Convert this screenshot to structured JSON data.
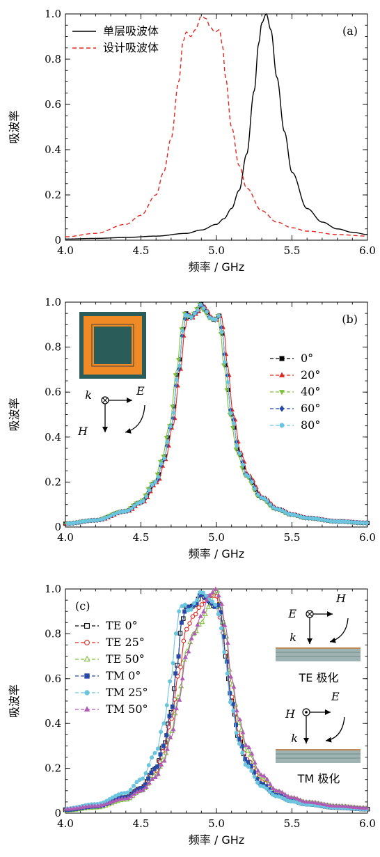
{
  "chart_data": [
    {
      "type": "line",
      "panel_label": "(a)",
      "xlabel": "频率 / GHz",
      "ylabel": "吸波率",
      "xlim": [
        4.0,
        6.0
      ],
      "ylim": [
        0,
        1.0
      ],
      "x_ticks": [
        "4.0",
        "4.5",
        "5.0",
        "5.5",
        "6.0"
      ],
      "y_ticks": [
        "0",
        "0.2",
        "0.4",
        "0.6",
        "0.8",
        "1.0"
      ],
      "legend_position": "top-left",
      "series": [
        {
          "name": "单层吸波体",
          "style": "solid",
          "color": "#000000",
          "x": [
            4.0,
            4.2,
            4.4,
            4.6,
            4.8,
            4.9,
            5.0,
            5.05,
            5.1,
            5.15,
            5.2,
            5.25,
            5.28,
            5.3,
            5.33,
            5.36,
            5.4,
            5.45,
            5.5,
            5.6,
            5.7,
            5.8,
            5.9,
            6.0
          ],
          "y": [
            0.005,
            0.008,
            0.012,
            0.018,
            0.03,
            0.045,
            0.07,
            0.095,
            0.14,
            0.22,
            0.38,
            0.66,
            0.87,
            0.96,
            1.0,
            0.93,
            0.72,
            0.48,
            0.3,
            0.14,
            0.08,
            0.05,
            0.035,
            0.025
          ]
        },
        {
          "name": "设计吸波体",
          "style": "dashed",
          "color": "#e3261f",
          "x": [
            4.0,
            4.2,
            4.4,
            4.5,
            4.6,
            4.65,
            4.7,
            4.75,
            4.78,
            4.8,
            4.83,
            4.86,
            4.9,
            4.93,
            4.96,
            4.99,
            5.02,
            5.04,
            5.06,
            5.1,
            5.15,
            5.2,
            5.3,
            5.4,
            5.5,
            5.6,
            5.8,
            6.0
          ],
          "y": [
            0.015,
            0.03,
            0.07,
            0.11,
            0.2,
            0.3,
            0.45,
            0.7,
            0.88,
            0.92,
            0.9,
            0.93,
            0.99,
            0.98,
            0.94,
            0.92,
            0.93,
            0.86,
            0.72,
            0.5,
            0.33,
            0.23,
            0.13,
            0.08,
            0.055,
            0.04,
            0.025,
            0.018
          ]
        }
      ]
    },
    {
      "type": "line",
      "panel_label": "(b)",
      "xlabel": "频率 / GHz",
      "ylabel": "吸波率",
      "xlim": [
        4.0,
        6.0
      ],
      "ylim": [
        0,
        1.0
      ],
      "x_ticks": [
        "4.0",
        "4.5",
        "5.0",
        "5.5",
        "6.0"
      ],
      "y_ticks": [
        "0",
        "0.2",
        "0.4",
        "0.6",
        "0.8",
        "1.0"
      ],
      "legend_position": "right",
      "inset_labels": {
        "k": "k",
        "E": "E",
        "H": "H"
      },
      "inset_colors": {
        "frame": "#2a5d5a",
        "ring": "#f08a24",
        "center": "#2a5d5a"
      },
      "series": [
        {
          "name": "0°",
          "marker": "square",
          "color": "#000000",
          "dx": 0.0
        },
        {
          "name": "20°",
          "marker": "triangle-up",
          "color": "#e3261f",
          "dx": 0.012
        },
        {
          "name": "40°",
          "marker": "triangle-down",
          "color": "#7ec23b",
          "dx": -0.012
        },
        {
          "name": "60°",
          "marker": "diamond",
          "color": "#2649a6",
          "dx": 0.0
        },
        {
          "name": "80°",
          "marker": "circle",
          "color": "#6cc5df",
          "dx": 0.0
        }
      ],
      "base_curve": {
        "x": [
          4.0,
          4.2,
          4.4,
          4.5,
          4.6,
          4.65,
          4.7,
          4.75,
          4.78,
          4.8,
          4.83,
          4.86,
          4.9,
          4.93,
          4.96,
          4.99,
          5.02,
          5.04,
          5.06,
          5.1,
          5.15,
          5.2,
          5.3,
          5.4,
          5.5,
          5.6,
          5.8,
          6.0
        ],
        "y": [
          0.015,
          0.03,
          0.07,
          0.11,
          0.2,
          0.3,
          0.45,
          0.7,
          0.88,
          0.95,
          0.93,
          0.95,
          0.99,
          0.96,
          0.93,
          0.92,
          0.94,
          0.86,
          0.72,
          0.5,
          0.33,
          0.23,
          0.13,
          0.08,
          0.055,
          0.04,
          0.025,
          0.018
        ]
      }
    },
    {
      "type": "line",
      "panel_label": "(c)",
      "xlabel": "频率 / GHz",
      "ylabel": "吸波率",
      "xlim": [
        4.0,
        6.0
      ],
      "ylim": [
        0,
        1.0
      ],
      "x_ticks": [
        "4.0",
        "4.5",
        "5.0",
        "5.5",
        "6.0"
      ],
      "y_ticks": [
        "0",
        "0.2",
        "0.4",
        "0.6",
        "0.8",
        "1.0"
      ],
      "legend_position": "left",
      "inset_labels": {
        "te_E": "E",
        "te_H": "H",
        "te_k": "k",
        "te_caption": "TE 极化",
        "tm_E": "E",
        "tm_H": "H",
        "tm_k": "k",
        "tm_caption": "TM 极化"
      },
      "series": [
        {
          "name": "TE 0°",
          "marker": "square-open",
          "color": "#000000",
          "curve": "te0"
        },
        {
          "name": "TE 25°",
          "marker": "circle-open",
          "color": "#e3261f",
          "curve": "te25"
        },
        {
          "name": "TE 50°",
          "marker": "triangle-open",
          "color": "#7ec23b",
          "curve": "te50"
        },
        {
          "name": "TM 0°",
          "marker": "square",
          "color": "#2649a6",
          "curve": "te0"
        },
        {
          "name": "TM 25°",
          "marker": "circle",
          "color": "#6cc5df",
          "curve": "tm25"
        },
        {
          "name": "TM 50°",
          "marker": "triangle-up",
          "color": "#b05cb6",
          "curve": "tm50"
        }
      ],
      "curves": {
        "te0": {
          "x": [
            4.0,
            4.2,
            4.4,
            4.5,
            4.6,
            4.65,
            4.7,
            4.74,
            4.77,
            4.8,
            4.83,
            4.86,
            4.9,
            4.93,
            4.96,
            4.99,
            5.02,
            5.04,
            5.06,
            5.1,
            5.15,
            5.2,
            5.3,
            5.4,
            5.5,
            5.6,
            5.8,
            6.0
          ],
          "y": [
            0.015,
            0.03,
            0.07,
            0.11,
            0.2,
            0.3,
            0.45,
            0.66,
            0.85,
            0.92,
            0.92,
            0.93,
            0.98,
            0.96,
            0.94,
            0.92,
            0.93,
            0.85,
            0.7,
            0.5,
            0.33,
            0.23,
            0.13,
            0.08,
            0.055,
            0.04,
            0.025,
            0.018
          ]
        },
        "te25": {
          "x": [
            4.0,
            4.2,
            4.4,
            4.5,
            4.6,
            4.65,
            4.7,
            4.75,
            4.8,
            4.85,
            4.9,
            4.95,
            5.0,
            5.03,
            5.06,
            5.1,
            5.15,
            5.2,
            5.3,
            5.4,
            5.5,
            5.6,
            5.8,
            6.0
          ],
          "y": [
            0.015,
            0.03,
            0.07,
            0.11,
            0.19,
            0.28,
            0.42,
            0.62,
            0.82,
            0.88,
            0.93,
            0.97,
            0.97,
            0.86,
            0.72,
            0.52,
            0.35,
            0.24,
            0.14,
            0.085,
            0.058,
            0.042,
            0.026,
            0.019
          ]
        },
        "te50": {
          "x": [
            4.0,
            4.2,
            4.4,
            4.5,
            4.6,
            4.65,
            4.7,
            4.75,
            4.8,
            4.85,
            4.9,
            4.95,
            5.0,
            5.03,
            5.06,
            5.1,
            5.15,
            5.2,
            5.3,
            5.4,
            5.5,
            5.6,
            5.8,
            6.0
          ],
          "y": [
            0.012,
            0.025,
            0.06,
            0.1,
            0.17,
            0.24,
            0.36,
            0.52,
            0.72,
            0.8,
            0.85,
            0.92,
            1.0,
            0.92,
            0.8,
            0.58,
            0.4,
            0.28,
            0.16,
            0.095,
            0.065,
            0.047,
            0.03,
            0.021
          ]
        },
        "tm25": {
          "x": [
            4.0,
            4.2,
            4.4,
            4.5,
            4.6,
            4.65,
            4.7,
            4.73,
            4.76,
            4.79,
            4.82,
            4.86,
            4.9,
            4.93,
            4.96,
            4.99,
            5.02,
            5.05,
            5.1,
            5.15,
            5.2,
            5.3,
            5.4,
            5.5,
            5.6,
            5.8,
            6.0
          ],
          "y": [
            0.02,
            0.04,
            0.09,
            0.15,
            0.27,
            0.4,
            0.6,
            0.8,
            0.92,
            0.93,
            0.9,
            0.94,
            0.99,
            0.97,
            0.95,
            0.93,
            0.88,
            0.72,
            0.48,
            0.31,
            0.21,
            0.12,
            0.075,
            0.052,
            0.038,
            0.024,
            0.017
          ]
        },
        "tm50": {
          "x": [
            4.0,
            4.2,
            4.4,
            4.5,
            4.6,
            4.65,
            4.7,
            4.75,
            4.8,
            4.85,
            4.9,
            4.95,
            5.0,
            5.03,
            5.06,
            5.1,
            5.15,
            5.2,
            5.3,
            5.4,
            5.5,
            5.6,
            5.8,
            6.0
          ],
          "y": [
            0.018,
            0.032,
            0.065,
            0.1,
            0.16,
            0.23,
            0.34,
            0.5,
            0.7,
            0.8,
            0.88,
            0.97,
            1.0,
            0.94,
            0.83,
            0.6,
            0.42,
            0.3,
            0.17,
            0.1,
            0.07,
            0.05,
            0.032,
            0.023
          ]
        }
      }
    }
  ]
}
